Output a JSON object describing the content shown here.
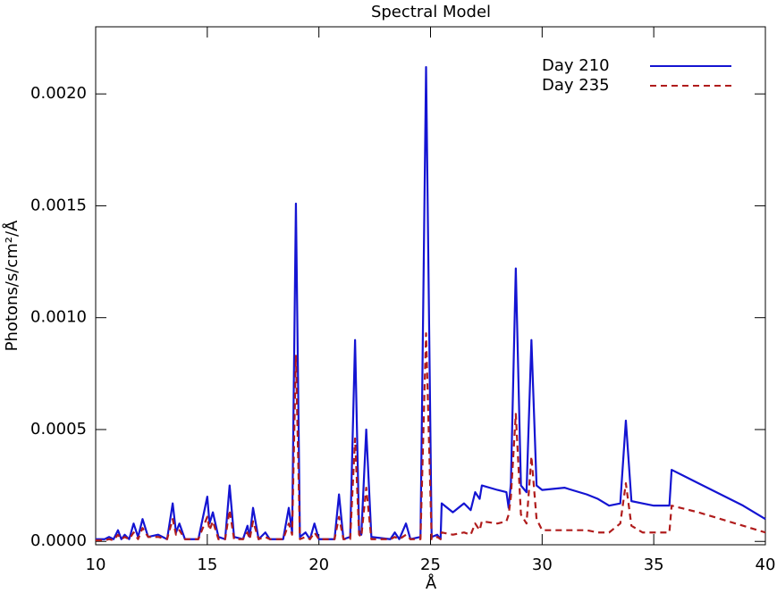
{
  "chart_data": {
    "type": "line",
    "title": "Spectral Model",
    "x_label": "Å",
    "y_label": "Photons/s/cm²/Å",
    "x": [
      10.0,
      10.4,
      10.6,
      10.8,
      11.0,
      11.15,
      11.3,
      11.5,
      11.7,
      11.9,
      12.1,
      12.35,
      12.8,
      13.2,
      13.45,
      13.6,
      13.75,
      14.0,
      14.6,
      15.0,
      15.1,
      15.25,
      15.5,
      15.8,
      16.0,
      16.2,
      16.6,
      16.8,
      16.9,
      17.05,
      17.3,
      17.6,
      17.8,
      18.4,
      18.65,
      18.8,
      18.97,
      19.15,
      19.4,
      19.6,
      19.8,
      20.0,
      20.7,
      20.9,
      21.1,
      21.4,
      21.62,
      21.8,
      21.9,
      22.12,
      22.35,
      23.2,
      23.4,
      23.6,
      23.9,
      24.1,
      24.55,
      24.8,
      25.05,
      25.3,
      25.45,
      25.5,
      26.0,
      26.5,
      26.8,
      27.0,
      27.2,
      27.3,
      28.0,
      28.4,
      28.5,
      28.6,
      28.82,
      29.05,
      29.3,
      29.52,
      29.75,
      30.0,
      31.0,
      32.0,
      32.5,
      33.0,
      33.5,
      33.75,
      34.0,
      34.5,
      35.0,
      35.7,
      35.8,
      37.0,
      38.0,
      39.0,
      40.0
    ],
    "series": [
      {
        "name": "Day 210",
        "color": "#1414d2",
        "dash": false,
        "values": [
          1e-05,
          1e-05,
          2e-05,
          1e-05,
          5e-05,
          1e-05,
          3e-05,
          1e-05,
          8e-05,
          2e-05,
          0.0001,
          2e-05,
          3e-05,
          1e-05,
          0.00017,
          4e-05,
          8e-05,
          1e-05,
          1e-05,
          0.0002,
          8e-05,
          0.00013,
          2e-05,
          1e-05,
          0.00025,
          2e-05,
          1e-05,
          7e-05,
          2e-05,
          0.00015,
          1e-05,
          4e-05,
          1e-05,
          1e-05,
          0.00015,
          4e-05,
          0.00151,
          2e-05,
          4e-05,
          1e-05,
          8e-05,
          1e-05,
          1e-05,
          0.00021,
          1e-05,
          2e-05,
          0.0009,
          5e-05,
          3e-05,
          0.0005,
          2e-05,
          1e-05,
          4e-05,
          1e-05,
          8e-05,
          1e-05,
          2e-05,
          0.00212,
          2e-05,
          3e-05,
          1e-05,
          0.00017,
          0.00013,
          0.00017,
          0.00014,
          0.00022,
          0.00019,
          0.00025,
          0.00023,
          0.00022,
          0.00015,
          0.00026,
          0.00122,
          0.00025,
          0.00022,
          0.0009,
          0.00025,
          0.00023,
          0.00024,
          0.00021,
          0.00019,
          0.00016,
          0.00017,
          0.00054,
          0.00018,
          0.00017,
          0.00016,
          0.00016,
          0.00032,
          0.00026,
          0.00021,
          0.00016,
          0.0001
        ]
      },
      {
        "name": "Day 235",
        "color": "#b01c1c",
        "dash": true,
        "values": [
          5e-06,
          5e-06,
          1e-05,
          5e-06,
          3e-05,
          1e-05,
          2e-05,
          1e-05,
          4e-05,
          1e-05,
          6e-05,
          2e-05,
          2e-05,
          1e-05,
          0.0001,
          3e-05,
          5e-05,
          1e-05,
          1e-05,
          0.00011,
          5e-05,
          9e-05,
          1e-05,
          1e-05,
          0.00014,
          1e-05,
          1e-05,
          4e-05,
          1e-05,
          9e-05,
          1e-05,
          2e-05,
          1e-05,
          1e-05,
          8e-05,
          3e-05,
          0.00083,
          1e-05,
          2e-05,
          1e-05,
          4e-05,
          1e-05,
          1e-05,
          0.00011,
          1e-05,
          1e-05,
          0.00046,
          3e-05,
          2e-05,
          0.00024,
          1e-05,
          1e-05,
          2e-05,
          1e-05,
          3e-05,
          1e-05,
          1e-05,
          0.00093,
          1e-05,
          2e-05,
          1e-05,
          4e-05,
          3e-05,
          4e-05,
          3e-05,
          8e-05,
          5e-05,
          9e-05,
          8e-05,
          9e-05,
          0.00012,
          0.0002,
          0.00057,
          0.00012,
          8e-05,
          0.00038,
          0.0001,
          5e-05,
          5e-05,
          5e-05,
          4e-05,
          4e-05,
          8e-05,
          0.00026,
          7e-05,
          4e-05,
          4e-05,
          4e-05,
          0.00016,
          0.00013,
          0.0001,
          7e-05,
          4e-05
        ]
      }
    ],
    "xlim": [
      10,
      40
    ],
    "xticks": [
      10,
      15,
      20,
      25,
      30,
      35,
      40
    ],
    "ylim": [
      -1.5e-05,
      0.0023
    ],
    "yticks": [
      {
        "value": 0,
        "label": "0.0000"
      },
      {
        "value": 0.0005,
        "label": "0.0005"
      },
      {
        "value": 0.001,
        "label": "0.0010"
      },
      {
        "value": 0.0015,
        "label": "0.0015"
      },
      {
        "value": 0.002,
        "label": "0.0020"
      }
    ],
    "grid": false,
    "legend": "upper right"
  }
}
